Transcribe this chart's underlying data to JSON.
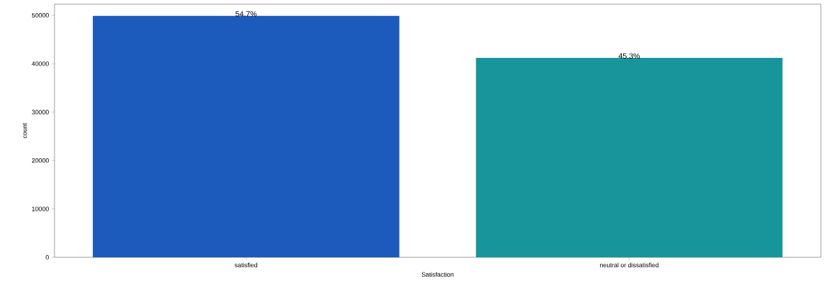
{
  "chart_data": {
    "type": "bar",
    "xlabel": "Satisfaction",
    "ylabel": "count",
    "categories": [
      "satisfied",
      "neutral or dissatisfied"
    ],
    "values": [
      49900,
      41200
    ],
    "colors": [
      "#1c5bbb",
      "#17959a"
    ],
    "annotations": [
      {
        "text": "54.7%",
        "x": "satisfied",
        "y": 49900
      },
      {
        "text": "45.3%",
        "x": "neutral or dissatisfied",
        "y": 41200
      }
    ],
    "ylim": [
      0,
      52300
    ],
    "yticks": [
      0,
      10000,
      20000,
      30000,
      40000,
      50000
    ],
    "grid": false
  }
}
